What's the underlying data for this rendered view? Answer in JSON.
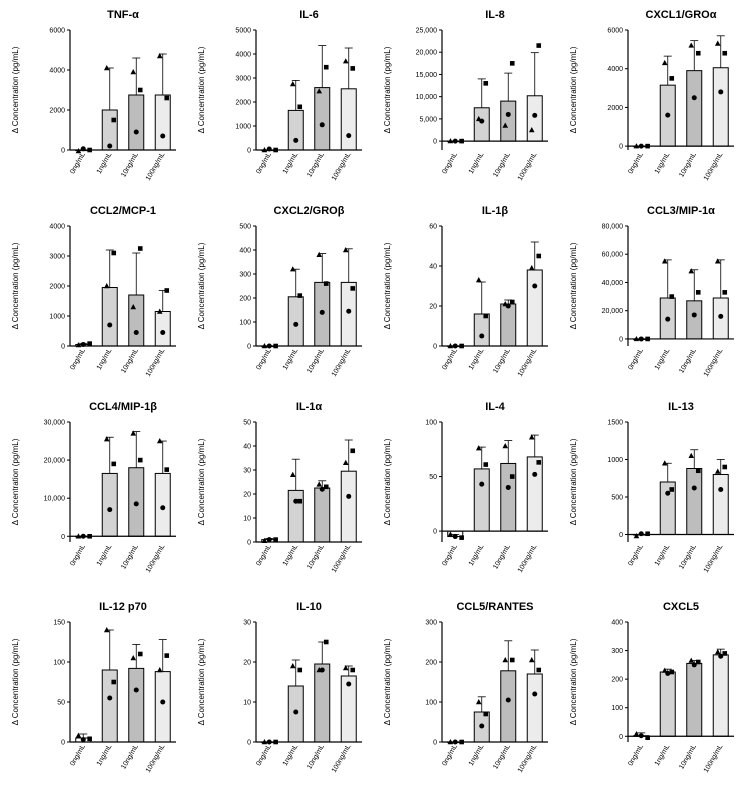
{
  "figure": {
    "categories": [
      "0ng/mL",
      "1ng/mL",
      "10ng/mL",
      "100ng/mL"
    ],
    "ylabel": "Δ Concentration (pg/mL)",
    "bar_colors": [
      "#ffffff",
      "#d3d3d3",
      "#bdbdbd",
      "#ececec"
    ],
    "marker_shapes": [
      "square",
      "triangle",
      "circle"
    ]
  },
  "chart_data": [
    {
      "type": "bar",
      "title": "TNF-α",
      "categories": [
        "0ng/mL",
        "1ng/mL",
        "10ng/mL",
        "100ng/mL"
      ],
      "values": [
        0,
        2000,
        2750,
        2750
      ],
      "error": [
        0,
        2100,
        1850,
        2050
      ],
      "points": [
        [
          0,
          -50,
          60
        ],
        [
          1500,
          4100,
          200
        ],
        [
          3000,
          3900,
          900
        ],
        [
          2600,
          4700,
          700
        ]
      ],
      "ylim": [
        0,
        6000
      ],
      "yticks": [
        0,
        2000,
        4000,
        6000
      ],
      "ytick_labels": [
        "0",
        "2000",
        "4000",
        "6000"
      ]
    },
    {
      "type": "bar",
      "title": "IL-6",
      "categories": [
        "0ng/mL",
        "1ng/mL",
        "10ng/mL",
        "100ng/mL"
      ],
      "values": [
        0,
        1650,
        2600,
        2550
      ],
      "error": [
        0,
        1250,
        1750,
        1700
      ],
      "points": [
        [
          0,
          0,
          40
        ],
        [
          1800,
          2750,
          400
        ],
        [
          3450,
          2450,
          1050
        ],
        [
          3400,
          3700,
          600
        ]
      ],
      "ylim": [
        0,
        5000
      ],
      "yticks": [
        0,
        1000,
        2000,
        3000,
        4000,
        5000
      ],
      "ytick_labels": [
        "0",
        "1000",
        "2000",
        "3000",
        "4000",
        "5000"
      ]
    },
    {
      "type": "bar",
      "title": "IL-8",
      "categories": [
        "0ng/mL",
        "1ng/mL",
        "10ng/mL",
        "100ng/mL"
      ],
      "values": [
        0,
        7500,
        9000,
        10200
      ],
      "error": [
        0,
        6500,
        6300,
        9700
      ],
      "points": [
        [
          0,
          0,
          0
        ],
        [
          13000,
          5000,
          4500
        ],
        [
          17500,
          3500,
          6000
        ],
        [
          21500,
          2500,
          5800
        ]
      ],
      "ylim": [
        -2000,
        25000
      ],
      "yticks": [
        0,
        5000,
        10000,
        15000,
        20000,
        25000
      ],
      "ytick_labels": [
        "0",
        "5,000",
        "10,000",
        "15,000",
        "20,000",
        "25,000"
      ]
    },
    {
      "type": "bar",
      "title": "CXCL1/GROα",
      "categories": [
        "0ng/mL",
        "1ng/mL",
        "10ng/mL",
        "100ng/mL"
      ],
      "values": [
        0,
        3150,
        3900,
        4050
      ],
      "error": [
        0,
        1500,
        1550,
        1650
      ],
      "points": [
        [
          0,
          0,
          0
        ],
        [
          3500,
          4300,
          1600
        ],
        [
          4800,
          5200,
          2500
        ],
        [
          4800,
          5300,
          2800
        ]
      ],
      "ylim": [
        -200,
        6000
      ],
      "yticks": [
        0,
        2000,
        4000,
        6000
      ],
      "ytick_labels": [
        "0",
        "2000",
        "4000",
        "6000"
      ]
    },
    {
      "type": "bar",
      "title": "CCL2/MCP-1",
      "categories": [
        "0ng/mL",
        "1ng/mL",
        "10ng/mL",
        "100ng/mL"
      ],
      "values": [
        50,
        1950,
        1700,
        1150
      ],
      "error": [
        40,
        1250,
        1400,
        700
      ],
      "points": [
        [
          80,
          30,
          50
        ],
        [
          3100,
          2000,
          700
        ],
        [
          3250,
          1300,
          450
        ],
        [
          1850,
          1150,
          450
        ]
      ],
      "ylim": [
        0,
        4000
      ],
      "yticks": [
        0,
        1000,
        2000,
        3000,
        4000
      ],
      "ytick_labels": [
        "0",
        "1000",
        "2000",
        "3000",
        "4000"
      ]
    },
    {
      "type": "bar",
      "title": "CXCL2/GROβ",
      "categories": [
        "0ng/mL",
        "1ng/mL",
        "10ng/mL",
        "100ng/mL"
      ],
      "values": [
        0,
        205,
        265,
        265
      ],
      "error": [
        0,
        115,
        120,
        140
      ],
      "points": [
        [
          0,
          0,
          0
        ],
        [
          210,
          320,
          90
        ],
        [
          260,
          380,
          140
        ],
        [
          240,
          400,
          145
        ]
      ],
      "ylim": [
        0,
        500
      ],
      "yticks": [
        0,
        100,
        200,
        300,
        400,
        500
      ],
      "ytick_labels": [
        "0",
        "100",
        "200",
        "300",
        "400",
        "500"
      ]
    },
    {
      "type": "bar",
      "title": "IL-1β",
      "categories": [
        "0ng/mL",
        "1ng/mL",
        "10ng/mL",
        "100ng/mL"
      ],
      "values": [
        0,
        16,
        21,
        38
      ],
      "error": [
        0,
        16,
        2,
        14
      ],
      "points": [
        [
          0,
          0,
          0
        ],
        [
          15,
          33,
          5
        ],
        [
          22,
          21,
          20
        ],
        [
          45,
          39,
          30
        ]
      ],
      "ylim": [
        0,
        60
      ],
      "yticks": [
        0,
        20,
        40,
        60
      ],
      "ytick_labels": [
        "0",
        "20",
        "40",
        "60"
      ]
    },
    {
      "type": "bar",
      "title": "CCL3/MIP-1α",
      "categories": [
        "0ng/mL",
        "1ng/mL",
        "10ng/mL",
        "100ng/mL"
      ],
      "values": [
        0,
        29000,
        27000,
        29000
      ],
      "error": [
        0,
        27000,
        22000,
        27000
      ],
      "points": [
        [
          0,
          0,
          0
        ],
        [
          30000,
          55000,
          14000
        ],
        [
          33000,
          48000,
          17000
        ],
        [
          33000,
          55000,
          16000
        ]
      ],
      "ylim": [
        -5000,
        80000
      ],
      "yticks": [
        0,
        20000,
        40000,
        60000,
        80000
      ],
      "ytick_labels": [
        "0",
        "20,000",
        "40,000",
        "60,000",
        "80,000"
      ]
    },
    {
      "type": "bar",
      "title": "CCL4/MIP-1β",
      "categories": [
        "0ng/mL",
        "1ng/mL",
        "10ng/mL",
        "100ng/mL"
      ],
      "values": [
        0,
        16500,
        18000,
        16500
      ],
      "error": [
        0,
        9500,
        9500,
        8500
      ],
      "points": [
        [
          0,
          0,
          0
        ],
        [
          19000,
          25500,
          7000
        ],
        [
          20000,
          27000,
          8500
        ],
        [
          17500,
          25000,
          7500
        ]
      ],
      "ylim": [
        -1500,
        30000
      ],
      "yticks": [
        0,
        10000,
        20000,
        30000
      ],
      "ytick_labels": [
        "0",
        "10,000",
        "20,000",
        "30,000"
      ]
    },
    {
      "type": "bar",
      "title": "IL-1α",
      "categories": [
        "0ng/mL",
        "1ng/mL",
        "10ng/mL",
        "100ng/mL"
      ],
      "values": [
        1,
        21.5,
        22.5,
        29.5
      ],
      "error": [
        0.5,
        13,
        3,
        13
      ],
      "points": [
        [
          1,
          0.5,
          1
        ],
        [
          17,
          28,
          17
        ],
        [
          23,
          24,
          22
        ],
        [
          38,
          33,
          19
        ]
      ],
      "ylim": [
        0,
        50
      ],
      "yticks": [
        0,
        10,
        20,
        30,
        40,
        50
      ],
      "ytick_labels": [
        "0",
        "10",
        "20",
        "30",
        "40",
        "50"
      ]
    },
    {
      "type": "bar",
      "title": "IL-4",
      "categories": [
        "0ng/mL",
        "1ng/mL",
        "10ng/mL",
        "100ng/mL"
      ],
      "values": [
        -5,
        57,
        62,
        68
      ],
      "error": [
        2,
        20,
        21,
        20
      ],
      "points": [
        [
          -6,
          -3,
          -5
        ],
        [
          61,
          76,
          43
        ],
        [
          50,
          78,
          40
        ],
        [
          63,
          86,
          52
        ]
      ],
      "ylim": [
        -10,
        100
      ],
      "yticks": [
        0,
        50,
        100
      ],
      "ytick_labels": [
        "0",
        "50",
        "100"
      ]
    },
    {
      "type": "bar",
      "title": "IL-13",
      "categories": [
        "0ng/mL",
        "1ng/mL",
        "10ng/mL",
        "100ng/mL"
      ],
      "values": [
        0,
        700,
        880,
        800
      ],
      "error": [
        0,
        250,
        250,
        200
      ],
      "points": [
        [
          10,
          -20,
          10
        ],
        [
          600,
          950,
          550
        ],
        [
          850,
          1050,
          620
        ],
        [
          900,
          840,
          600
        ]
      ],
      "ylim": [
        -100,
        1500
      ],
      "yticks": [
        0,
        500,
        1000,
        1500
      ],
      "ytick_labels": [
        "0",
        "500",
        "1000",
        "1500"
      ]
    },
    {
      "type": "bar",
      "title": "IL-12 p70",
      "categories": [
        "0ng/mL",
        "1ng/mL",
        "10ng/mL",
        "100ng/mL"
      ],
      "values": [
        5,
        90,
        92,
        88
      ],
      "error": [
        5,
        50,
        30,
        40
      ],
      "points": [
        [
          4,
          8,
          3
        ],
        [
          75,
          140,
          55
        ],
        [
          110,
          105,
          65
        ],
        [
          108,
          90,
          50
        ]
      ],
      "ylim": [
        0,
        150
      ],
      "yticks": [
        0,
        50,
        100,
        150
      ],
      "ytick_labels": [
        "0",
        "50",
        "100",
        "150"
      ]
    },
    {
      "type": "bar",
      "title": "IL-10",
      "categories": [
        "0ng/mL",
        "1ng/mL",
        "10ng/mL",
        "100ng/mL"
      ],
      "values": [
        0,
        14,
        19.5,
        16.5
      ],
      "error": [
        0,
        6.5,
        5.5,
        2.5
      ],
      "points": [
        [
          0,
          0,
          0
        ],
        [
          18,
          19,
          7.5
        ],
        [
          25,
          18,
          18
        ],
        [
          18,
          18.5,
          14.5
        ]
      ],
      "ylim": [
        0,
        30
      ],
      "yticks": [
        0,
        10,
        20,
        30
      ],
      "ytick_labels": [
        "0",
        "10",
        "20",
        "30"
      ]
    },
    {
      "type": "bar",
      "title": "CCL5/RANTES",
      "categories": [
        "0ng/mL",
        "1ng/mL",
        "10ng/mL",
        "100ng/mL"
      ],
      "values": [
        0,
        75,
        178,
        170
      ],
      "error": [
        0,
        38,
        75,
        60
      ],
      "points": [
        [
          0,
          0,
          0
        ],
        [
          70,
          100,
          40
        ],
        [
          205,
          205,
          105
        ],
        [
          180,
          205,
          120
        ]
      ],
      "ylim": [
        0,
        300
      ],
      "yticks": [
        0,
        100,
        200,
        300
      ],
      "ytick_labels": [
        "0",
        "100",
        "200",
        "300"
      ]
    },
    {
      "type": "bar",
      "title": "CXCL5",
      "categories": [
        "0ng/mL",
        "1ng/mL",
        "10ng/mL",
        "100ng/mL"
      ],
      "values": [
        2,
        225,
        255,
        285
      ],
      "error": [
        10,
        10,
        10,
        20
      ],
      "points": [
        [
          -5,
          8,
          2
        ],
        [
          225,
          230,
          220
        ],
        [
          260,
          265,
          250
        ],
        [
          290,
          295,
          280
        ]
      ],
      "ylim": [
        -20,
        400
      ],
      "yticks": [
        0,
        100,
        200,
        300,
        400
      ],
      "ytick_labels": [
        "0",
        "100",
        "200",
        "300",
        "400"
      ]
    }
  ]
}
